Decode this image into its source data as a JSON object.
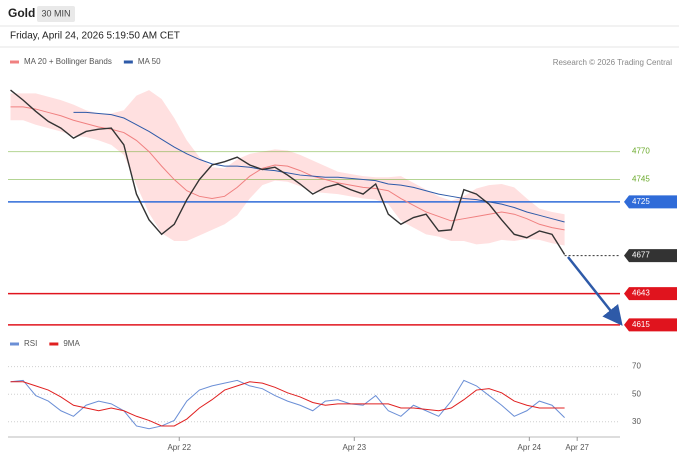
{
  "header": {
    "title": "Gold",
    "timeframe": "30 MIN",
    "timestamp": "Friday, April 24, 2026 5:19:50 AM CET",
    "credit": "Research © 2026 Trading Central"
  },
  "chart_data": [
    {
      "type": "line",
      "x": [
        0,
        1,
        2,
        3,
        4,
        5,
        6,
        7,
        8,
        9,
        10,
        11,
        12,
        13,
        14,
        15,
        16,
        17,
        18,
        19,
        20,
        21,
        22,
        23,
        24,
        25,
        26,
        27,
        28,
        29,
        30,
        31,
        32,
        33,
        34,
        35,
        36,
        37,
        38,
        39,
        40,
        41,
        42,
        43,
        44
      ],
      "xlim": [
        -0.2,
        48.4
      ],
      "ylim": [
        4606,
        4834
      ],
      "series": [
        {
          "name": "MA 20 + Bollinger Bands",
          "color": "#f08080",
          "band_color": "#ffe0e0",
          "values": [
            4810,
            4810,
            4808,
            4805,
            4802,
            4798,
            4795,
            4792,
            4790,
            4787,
            4780,
            4770,
            4757,
            4745,
            4735,
            4730,
            4728,
            4730,
            4738,
            4748,
            4755,
            4758,
            4757,
            4753,
            4748,
            4745,
            4742,
            4740,
            4738,
            4737,
            4735,
            4728,
            4722,
            4716,
            4712,
            4708,
            4710,
            4712,
            4714,
            4716,
            4714,
            4710,
            4705,
            4702,
            4700
          ],
          "upper": [
            4822,
            4822,
            4822,
            4819,
            4816,
            4812,
            4807,
            4804,
            4804,
            4807,
            4820,
            4825,
            4817,
            4800,
            4780,
            4765,
            4756,
            4755,
            4763,
            4768,
            4770,
            4772,
            4771,
            4767,
            4762,
            4757,
            4752,
            4750,
            4748,
            4747,
            4747,
            4748,
            4742,
            4736,
            4730,
            4726,
            4730,
            4737,
            4740,
            4741,
            4738,
            4728,
            4719,
            4716,
            4714
          ],
          "lower": [
            4798,
            4798,
            4794,
            4791,
            4788,
            4784,
            4783,
            4780,
            4776,
            4767,
            4740,
            4715,
            4697,
            4690,
            4690,
            4695,
            4700,
            4705,
            4713,
            4728,
            4740,
            4744,
            4743,
            4739,
            4734,
            4733,
            4732,
            4730,
            4728,
            4727,
            4723,
            4708,
            4702,
            4696,
            4694,
            4690,
            4690,
            4687,
            4688,
            4691,
            4690,
            4692,
            4691,
            4688,
            4686
          ]
        },
        {
          "name": "MA 50",
          "color": "#2e5aa8",
          "values": [
            null,
            null,
            null,
            null,
            null,
            4805,
            4805,
            4804,
            4803,
            4800,
            4794,
            4788,
            4781,
            4774,
            4768,
            4763,
            4759,
            4757,
            4757,
            4756,
            4754,
            4753,
            4751,
            4749,
            4748,
            4747,
            4747,
            4746,
            4745,
            4744,
            4741,
            4740,
            4738,
            4735,
            4732,
            4730,
            4728,
            4727,
            4725,
            4723,
            4720,
            4716,
            4713,
            4710,
            4707
          ]
        },
        {
          "color": "#333333",
          "values": [
            4825,
            4816,
            4806,
            4797,
            4791,
            4782,
            4788,
            4790,
            4791,
            4776,
            4732,
            4709,
            4696,
            4705,
            4727,
            4745,
            4758,
            4761,
            4765,
            4758,
            4754,
            4756,
            4749,
            4741,
            4732,
            4738,
            4741,
            4736,
            4732,
            4741,
            4714,
            4705,
            4711,
            4714,
            4699,
            4700,
            4736,
            4732,
            4723,
            4709,
            4696,
            4693,
            4699,
            4696,
            4678
          ]
        }
      ],
      "levels": [
        {
          "value": 4770,
          "color": "#6aaa2a",
          "boxed": false,
          "dashed": false
        },
        {
          "value": 4745,
          "color": "#6aaa2a",
          "boxed": false,
          "dashed": false
        },
        {
          "value": 4725,
          "color": "#2f6bd8",
          "boxed": true,
          "dashed": false
        },
        {
          "value": 4677,
          "color": "#333333",
          "boxed": true,
          "dashed": true
        },
        {
          "value": 4643,
          "color": "#e0141e",
          "boxed": true,
          "dashed": false
        },
        {
          "value": 4615,
          "color": "#e0141e",
          "boxed": true,
          "dashed": false
        }
      ]
    },
    {
      "type": "line",
      "x": [
        0,
        1,
        2,
        3,
        4,
        5,
        6,
        7,
        8,
        9,
        10,
        11,
        12,
        13,
        14,
        15,
        16,
        17,
        18,
        19,
        20,
        21,
        22,
        23,
        24,
        25,
        26,
        27,
        28,
        29,
        30,
        31,
        32,
        33,
        34,
        35,
        36,
        37,
        38,
        39,
        40,
        41,
        42,
        43,
        44
      ],
      "xlim": [
        -0.2,
        48.4
      ],
      "ylim": [
        19,
        82
      ],
      "yticks": [
        30,
        50,
        70
      ],
      "xticks": [
        {
          "value": 13.4,
          "label": "Apr 22"
        },
        {
          "value": 27.3,
          "label": "Apr 23"
        },
        {
          "value": 41.2,
          "label": "Apr 24"
        },
        {
          "value": 45,
          "label": "Apr 27"
        }
      ],
      "series": [
        {
          "name": "RSI",
          "color": "#6b8fd6",
          "values": [
            59,
            60,
            49,
            45,
            38,
            34,
            42,
            45,
            43,
            38,
            27,
            25,
            27,
            31,
            45,
            53,
            56,
            58,
            60,
            56,
            54,
            49,
            45,
            42,
            38,
            45,
            46,
            43,
            42,
            49,
            38,
            34,
            42,
            38,
            34,
            45,
            60,
            56,
            49,
            42,
            34,
            38,
            45,
            42,
            33
          ]
        },
        {
          "name": "9MA",
          "color": "#e02020",
          "values": [
            59,
            59,
            56,
            53,
            48,
            42,
            40,
            38,
            40,
            38,
            34,
            31,
            27,
            27,
            32,
            40,
            46,
            53,
            56,
            59,
            58,
            55,
            51,
            48,
            44,
            42,
            43,
            43,
            43,
            43,
            43,
            40,
            40,
            39,
            38,
            40,
            46,
            53,
            54,
            51,
            45,
            42,
            40,
            40,
            40
          ]
        }
      ]
    }
  ]
}
